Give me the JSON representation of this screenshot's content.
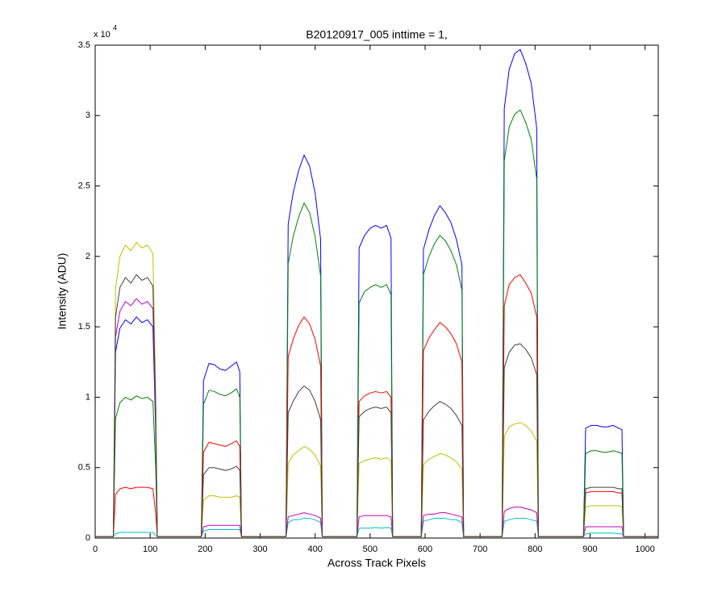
{
  "chart_data": {
    "type": "line",
    "title": "B20120917_005 inttime = 1,",
    "x_label": "Across Track Pixels",
    "y_label": "Intensity (ADU)",
    "y_exponent": {
      "base": "x 10",
      "power": "4"
    },
    "xlim": [
      0,
      1024
    ],
    "ylim": [
      0,
      3.5
    ],
    "xticks": [
      0,
      100,
      200,
      300,
      400,
      500,
      600,
      700,
      800,
      900,
      1000
    ],
    "yticks": [
      0,
      0.5,
      1,
      1.5,
      2,
      2.5,
      3,
      3.5
    ],
    "grid": false,
    "x": [
      0,
      30,
      33,
      37,
      45,
      55,
      65,
      75,
      85,
      95,
      105,
      110,
      113,
      150,
      193,
      197,
      207,
      217,
      227,
      237,
      247,
      257,
      263,
      266,
      300,
      347,
      351,
      360,
      370,
      380,
      390,
      400,
      410,
      413,
      445,
      476,
      480,
      490,
      500,
      510,
      520,
      530,
      538,
      541,
      570,
      593,
      597,
      607,
      617,
      627,
      637,
      647,
      657,
      667,
      670,
      705,
      740,
      744,
      753,
      763,
      773,
      783,
      793,
      803,
      806,
      850,
      888,
      892,
      902,
      912,
      922,
      932,
      942,
      952,
      958,
      961,
      1000,
      1024
    ],
    "series": [
      {
        "color": "#0000ff",
        "values": [
          0.01,
          0.01,
          0.01,
          1.32,
          1.49,
          1.55,
          1.52,
          1.57,
          1.53,
          1.55,
          1.5,
          0.78,
          0.01,
          0.01,
          0.01,
          1.12,
          1.24,
          1.23,
          1.2,
          1.19,
          1.22,
          1.25,
          1.18,
          0.01,
          0.01,
          0.01,
          2.23,
          2.45,
          2.61,
          2.72,
          2.64,
          2.45,
          2.12,
          0.01,
          0.01,
          0.01,
          2.06,
          2.15,
          2.2,
          2.22,
          2.2,
          2.22,
          2.13,
          0.01,
          0.01,
          0.01,
          2.05,
          2.19,
          2.29,
          2.36,
          2.31,
          2.24,
          2.12,
          1.94,
          0.01,
          0.01,
          0.01,
          3.05,
          3.33,
          3.44,
          3.47,
          3.37,
          3.23,
          2.91,
          0.01,
          0.01,
          0.01,
          0.78,
          0.8,
          0.8,
          0.79,
          0.79,
          0.8,
          0.78,
          0.77,
          0.01,
          0.01,
          0.01
        ]
      },
      {
        "color": "#008000",
        "values": [
          0.01,
          0.01,
          0.01,
          0.85,
          0.96,
          1.0,
          0.98,
          1.01,
          0.99,
          1.0,
          0.97,
          0.5,
          0.01,
          0.01,
          0.01,
          0.95,
          1.05,
          1.04,
          1.02,
          1.01,
          1.03,
          1.06,
          1.0,
          0.01,
          0.01,
          0.01,
          1.95,
          2.14,
          2.28,
          2.38,
          2.31,
          2.14,
          1.86,
          0.01,
          0.01,
          0.01,
          1.67,
          1.75,
          1.78,
          1.8,
          1.78,
          1.8,
          1.73,
          0.01,
          0.01,
          0.01,
          1.87,
          2.0,
          2.09,
          2.15,
          2.11,
          2.04,
          1.94,
          1.76,
          0.01,
          0.01,
          0.01,
          2.68,
          2.92,
          3.01,
          3.04,
          2.95,
          2.83,
          2.55,
          0.01,
          0.01,
          0.01,
          0.6,
          0.62,
          0.62,
          0.61,
          0.61,
          0.62,
          0.61,
          0.6,
          0.01,
          0.01,
          0.01
        ]
      },
      {
        "color": "#ff0000",
        "values": [
          0.01,
          0.01,
          0.01,
          0.31,
          0.35,
          0.36,
          0.35,
          0.36,
          0.36,
          0.36,
          0.35,
          0.18,
          0.01,
          0.01,
          0.01,
          0.61,
          0.68,
          0.67,
          0.66,
          0.65,
          0.67,
          0.69,
          0.65,
          0.01,
          0.01,
          0.01,
          1.29,
          1.41,
          1.51,
          1.57,
          1.52,
          1.41,
          1.22,
          0.01,
          0.01,
          0.01,
          0.97,
          1.01,
          1.03,
          1.04,
          1.03,
          1.04,
          1.0,
          0.01,
          0.01,
          0.01,
          1.33,
          1.42,
          1.48,
          1.53,
          1.5,
          1.45,
          1.38,
          1.25,
          0.01,
          0.01,
          0.01,
          1.65,
          1.8,
          1.85,
          1.87,
          1.81,
          1.74,
          1.57,
          0.01,
          0.01,
          0.01,
          0.32,
          0.33,
          0.33,
          0.33,
          0.33,
          0.33,
          0.32,
          0.32,
          0.01,
          0.01,
          0.01
        ]
      },
      {
        "color": "#00bfbf",
        "values": [
          0.01,
          0.01,
          0.01,
          0.03,
          0.04,
          0.04,
          0.04,
          0.04,
          0.04,
          0.04,
          0.04,
          0.02,
          0.01,
          0.01,
          0.01,
          0.05,
          0.06,
          0.06,
          0.06,
          0.06,
          0.06,
          0.06,
          0.06,
          0.01,
          0.01,
          0.01,
          0.11,
          0.13,
          0.13,
          0.14,
          0.14,
          0.13,
          0.11,
          0.01,
          0.01,
          0.01,
          0.07,
          0.07,
          0.07,
          0.075,
          0.07,
          0.075,
          0.07,
          0.01,
          0.01,
          0.01,
          0.12,
          0.13,
          0.14,
          0.14,
          0.14,
          0.13,
          0.13,
          0.11,
          0.01,
          0.01,
          0.01,
          0.12,
          0.13,
          0.14,
          0.14,
          0.14,
          0.13,
          0.12,
          0.01,
          0.01,
          0.01,
          0.03,
          0.035,
          0.035,
          0.035,
          0.035,
          0.035,
          0.03,
          0.03,
          0.01,
          0.01,
          0.01
        ]
      },
      {
        "color": "#bf00bf",
        "values": [
          0.01,
          0.01,
          0.01,
          1.43,
          1.61,
          1.68,
          1.65,
          1.7,
          1.66,
          1.68,
          1.63,
          0.84,
          0.01,
          0.01,
          0.01,
          0.08,
          0.09,
          0.09,
          0.09,
          0.09,
          0.09,
          0.09,
          0.09,
          0.01,
          0.01,
          0.01,
          0.15,
          0.16,
          0.17,
          0.18,
          0.17,
          0.16,
          0.14,
          0.01,
          0.01,
          0.01,
          0.15,
          0.16,
          0.16,
          0.16,
          0.16,
          0.16,
          0.15,
          0.01,
          0.01,
          0.01,
          0.16,
          0.17,
          0.17,
          0.18,
          0.18,
          0.17,
          0.16,
          0.15,
          0.01,
          0.01,
          0.01,
          0.19,
          0.21,
          0.22,
          0.22,
          0.21,
          0.2,
          0.18,
          0.01,
          0.01,
          0.01,
          0.08,
          0.08,
          0.08,
          0.08,
          0.08,
          0.08,
          0.08,
          0.08,
          0.01,
          0.01,
          0.01
        ]
      },
      {
        "color": "#bfbf00",
        "values": [
          0.01,
          0.01,
          0.01,
          1.77,
          2.0,
          2.08,
          2.04,
          2.1,
          2.06,
          2.08,
          2.02,
          1.04,
          0.01,
          0.01,
          0.01,
          0.27,
          0.3,
          0.3,
          0.29,
          0.29,
          0.29,
          0.3,
          0.29,
          0.01,
          0.01,
          0.01,
          0.53,
          0.59,
          0.62,
          0.65,
          0.63,
          0.59,
          0.51,
          0.01,
          0.01,
          0.01,
          0.53,
          0.55,
          0.56,
          0.57,
          0.56,
          0.57,
          0.55,
          0.01,
          0.01,
          0.01,
          0.52,
          0.56,
          0.58,
          0.6,
          0.59,
          0.57,
          0.54,
          0.49,
          0.01,
          0.01,
          0.01,
          0.72,
          0.79,
          0.81,
          0.82,
          0.8,
          0.76,
          0.69,
          0.01,
          0.01,
          0.01,
          0.22,
          0.23,
          0.23,
          0.23,
          0.23,
          0.23,
          0.23,
          0.22,
          0.01,
          0.01,
          0.01
        ]
      },
      {
        "color": "#404040",
        "values": [
          0.01,
          0.01,
          0.01,
          1.57,
          1.78,
          1.85,
          1.81,
          1.87,
          1.83,
          1.85,
          1.79,
          0.93,
          0.01,
          0.01,
          0.01,
          0.45,
          0.5,
          0.5,
          0.49,
          0.48,
          0.49,
          0.51,
          0.48,
          0.01,
          0.01,
          0.01,
          0.89,
          0.97,
          1.04,
          1.08,
          1.05,
          0.97,
          0.84,
          0.01,
          0.01,
          0.01,
          0.86,
          0.9,
          0.92,
          0.93,
          0.92,
          0.93,
          0.89,
          0.01,
          0.01,
          0.01,
          0.84,
          0.9,
          0.94,
          0.97,
          0.95,
          0.92,
          0.87,
          0.8,
          0.01,
          0.01,
          0.01,
          1.21,
          1.32,
          1.37,
          1.38,
          1.34,
          1.28,
          1.16,
          0.01,
          0.01,
          0.01,
          0.35,
          0.36,
          0.36,
          0.36,
          0.36,
          0.36,
          0.35,
          0.35,
          0.01,
          0.01,
          0.01
        ]
      }
    ]
  }
}
